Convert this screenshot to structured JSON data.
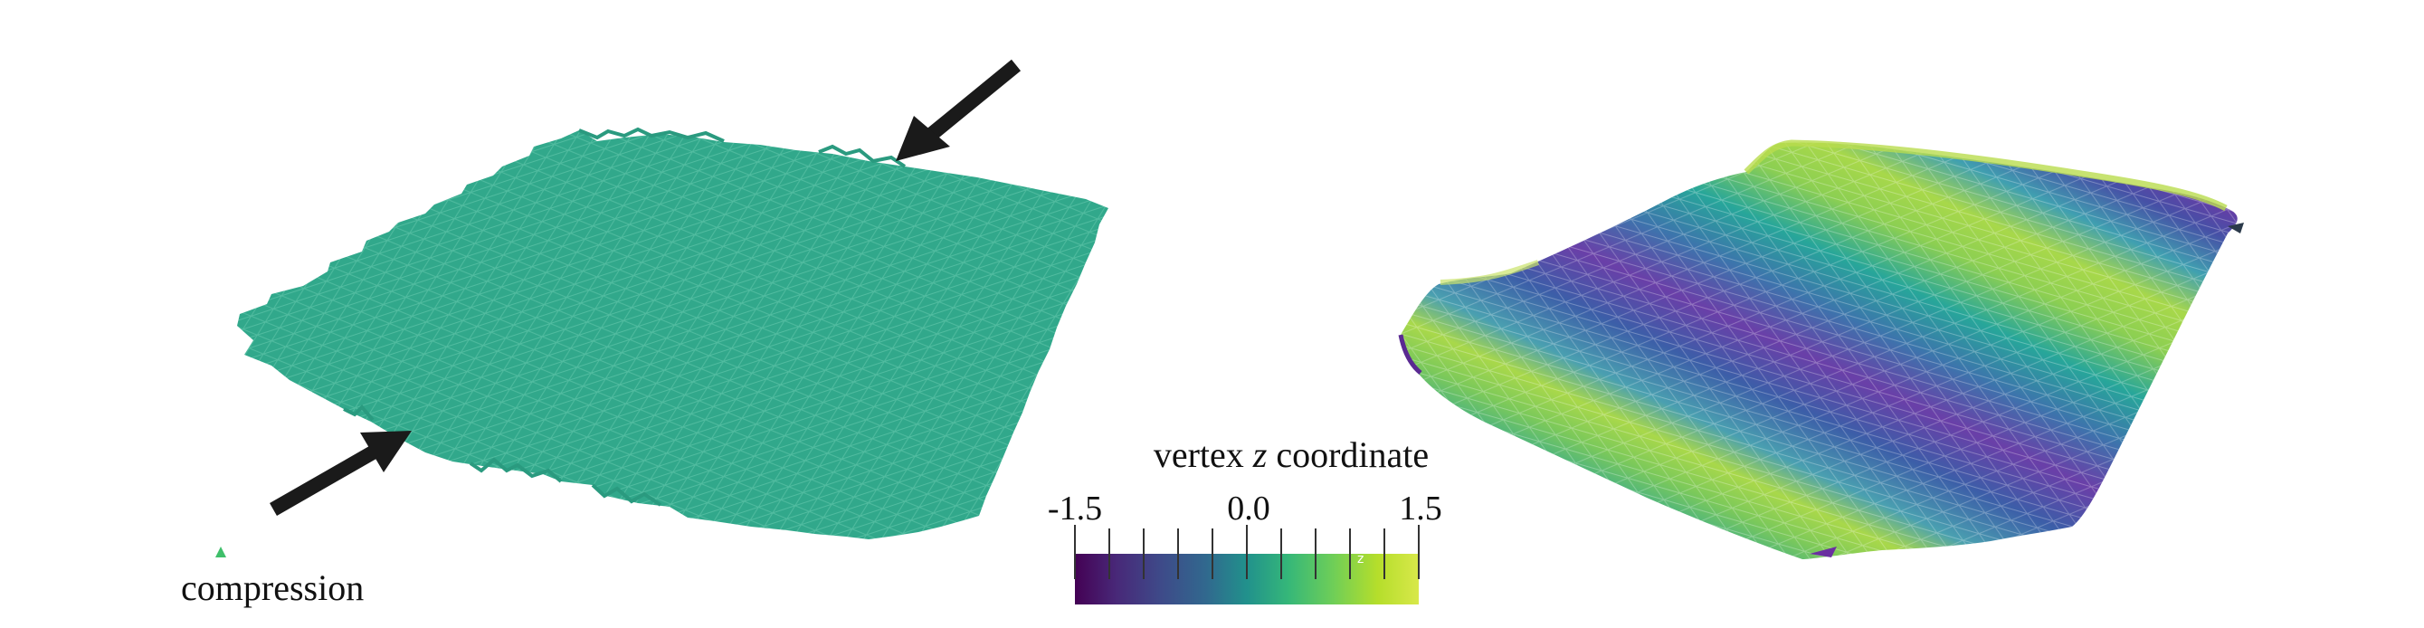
{
  "colorbar": {
    "title_prefix": "vertex ",
    "title_var": "z",
    "title_suffix": " coordinate",
    "tick_labels": [
      "-1.5",
      "0.0",
      "1.5"
    ],
    "range": [
      -1.5,
      1.5
    ],
    "colormap": [
      "#440154",
      "#3b528b",
      "#21918c",
      "#5ec962",
      "#fde725"
    ]
  },
  "left_panel": {
    "caption": "compression",
    "sheet_color": "#2fa88a",
    "arrow_color": "#1a1a1a"
  },
  "right_panel": {
    "colormap_name": "viridis"
  }
}
